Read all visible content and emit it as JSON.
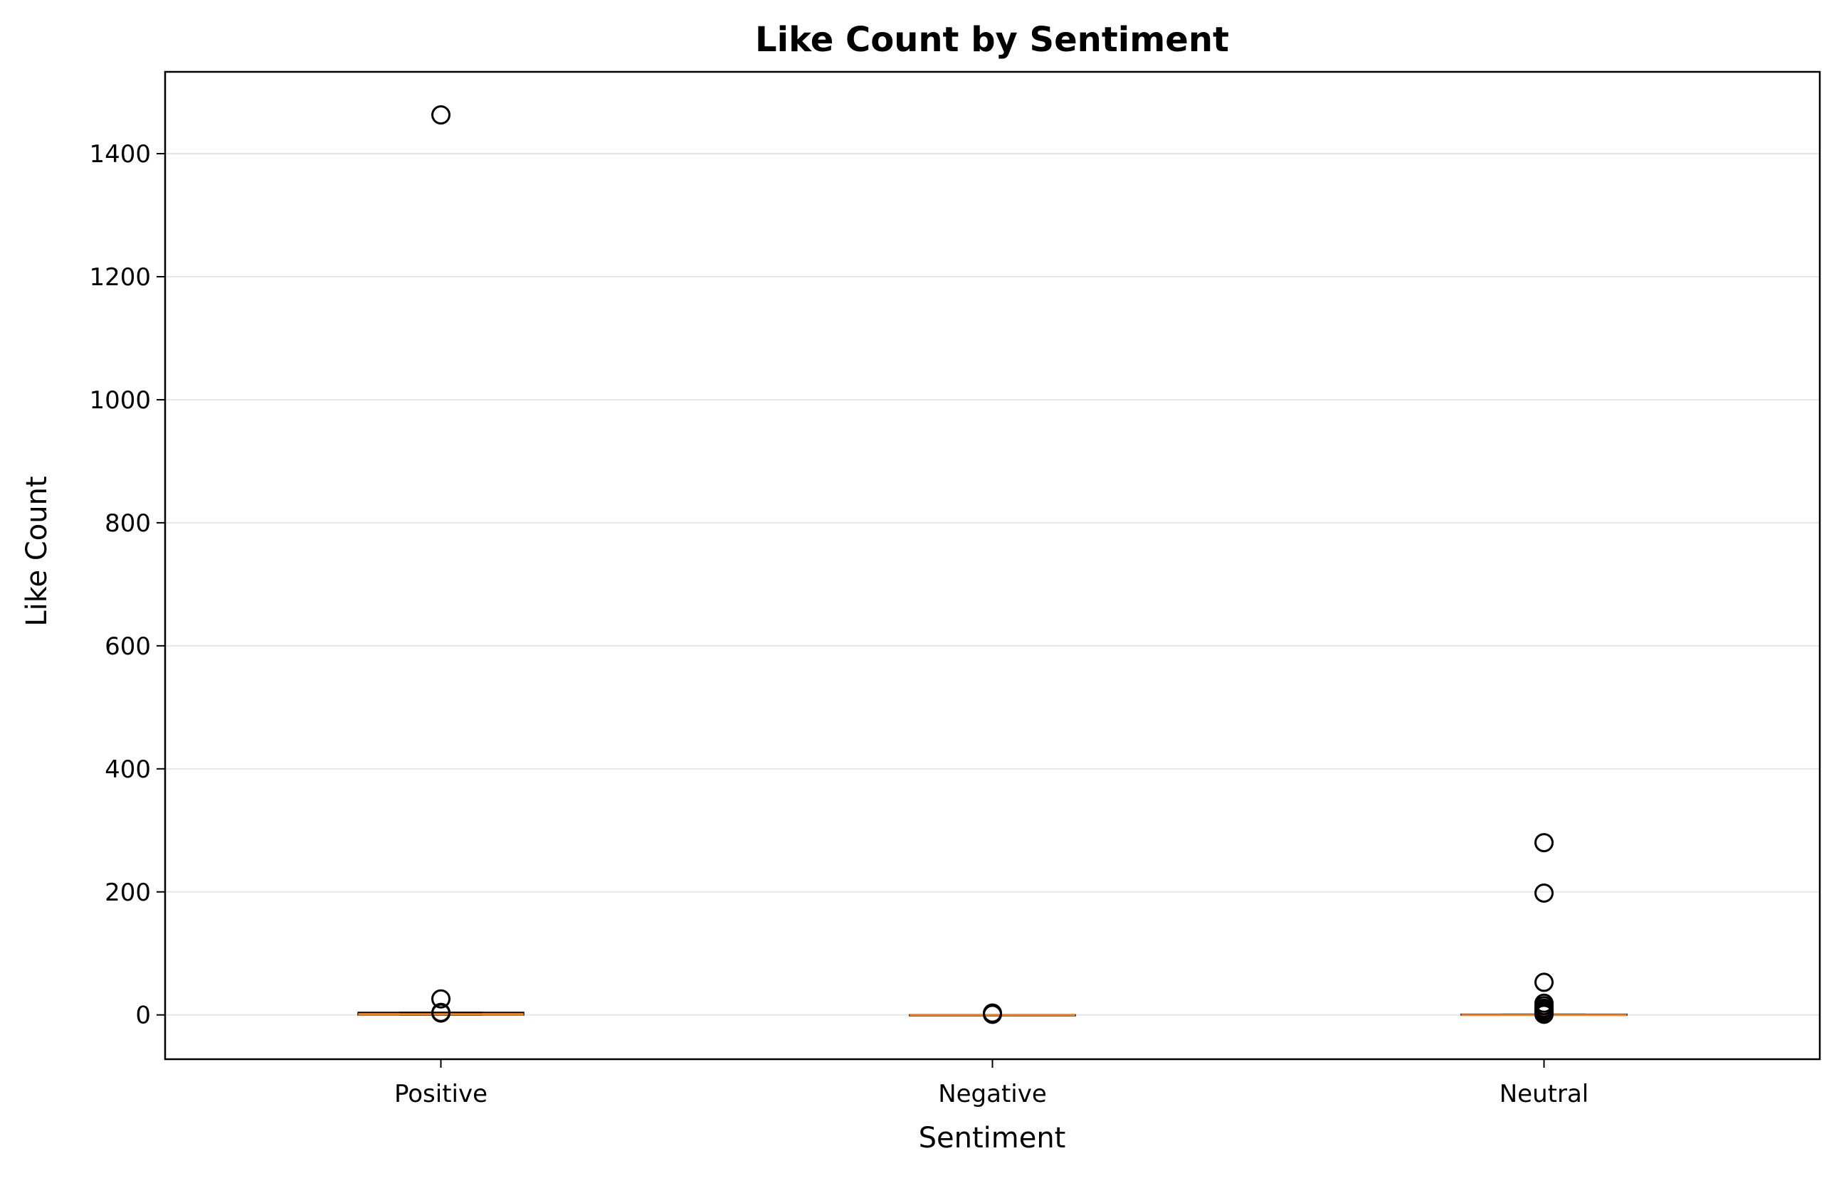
{
  "chart_data": {
    "type": "box",
    "title": "Like Count by Sentiment",
    "xlabel": "Sentiment",
    "ylabel": "Like Count",
    "categories": [
      "Positive",
      "Negative",
      "Neutral"
    ],
    "ylim": [
      -72,
      1533
    ],
    "yticks": [
      0,
      200,
      400,
      600,
      800,
      1000,
      1200,
      1400
    ],
    "ytick_labels": [
      "0",
      "200",
      "400",
      "600",
      "800",
      "1000",
      "1200",
      "1400"
    ],
    "grid": "horizontal",
    "boxes": [
      {
        "category": "Positive",
        "q1": 0,
        "median": 1,
        "q3": 4,
        "whisker_low": 0,
        "whisker_high": 4,
        "outliers": [
          1463,
          26,
          4,
          3
        ]
      },
      {
        "category": "Negative",
        "q1": 0,
        "median": 0,
        "q3": 0,
        "whisker_low": 0,
        "whisker_high": 0,
        "outliers": [
          3,
          1
        ]
      },
      {
        "category": "Neutral",
        "q1": 0,
        "median": 0,
        "q3": 1,
        "whisker_low": 0,
        "whisker_high": 1,
        "outliers": [
          280,
          198,
          53,
          19,
          15,
          11,
          8,
          5,
          3,
          1
        ]
      }
    ],
    "colors": {
      "median": "#ff7f0e",
      "box": "#000000",
      "outlier": "#000000",
      "grid": "#e6e6e6"
    }
  }
}
